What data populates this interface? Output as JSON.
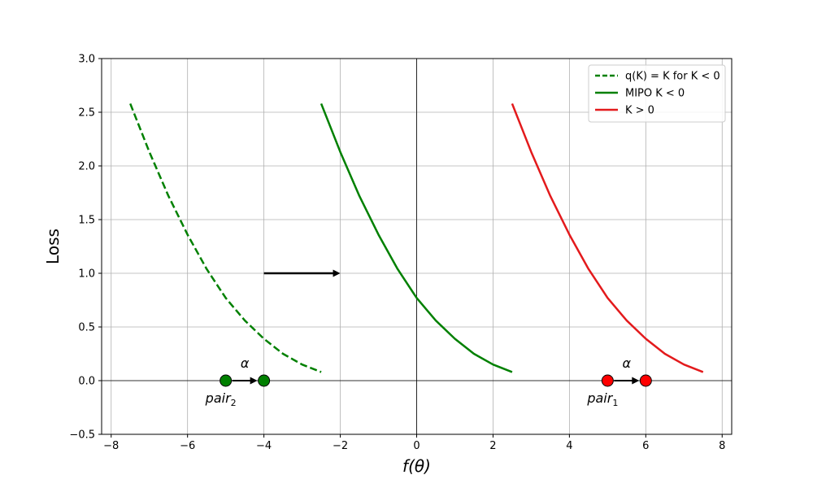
{
  "chart_data": {
    "type": "line",
    "xlabel": "f(θ)",
    "ylabel": "Loss",
    "xlim": [
      -8.25,
      8.25
    ],
    "ylim": [
      -0.5,
      3.0
    ],
    "x_ticks": [
      -8,
      -6,
      -4,
      -2,
      0,
      2,
      4,
      6,
      8
    ],
    "y_ticks": [
      -0.5,
      0.0,
      0.5,
      1.0,
      1.5,
      2.0,
      2.5,
      3.0
    ],
    "x_tick_labels": [
      "−8",
      "−6",
      "−4",
      "−2",
      "0",
      "2",
      "4",
      "6",
      "8"
    ],
    "y_tick_labels": [
      "−0.5",
      "0.0",
      "0.5",
      "1.0",
      "1.5",
      "2.0",
      "2.5",
      "3.0"
    ],
    "grid": true,
    "legend_position": "top-right",
    "series": [
      {
        "name": "q(K) = K for K < 0",
        "color": "#008000",
        "style": "dashed",
        "x": [
          -7.5,
          -7.0,
          -6.5,
          -6.0,
          -5.5,
          -5.0,
          -4.5,
          -4.0,
          -3.5,
          -3.0,
          -2.5
        ],
        "y": [
          2.58,
          2.13,
          1.72,
          1.36,
          1.04,
          0.77,
          0.56,
          0.39,
          0.25,
          0.15,
          0.08
        ]
      },
      {
        "name": "MIPO K < 0",
        "color": "#008000",
        "style": "solid",
        "x": [
          -2.5,
          -2.0,
          -1.5,
          -1.0,
          -0.5,
          0.0,
          0.5,
          1.0,
          1.5,
          2.0,
          2.5
        ],
        "y": [
          2.58,
          2.13,
          1.72,
          1.36,
          1.04,
          0.77,
          0.56,
          0.39,
          0.25,
          0.15,
          0.08
        ]
      },
      {
        "name": "K > 0",
        "color": "#e31a1c",
        "style": "solid",
        "x": [
          2.5,
          3.0,
          3.5,
          4.0,
          4.5,
          5.0,
          5.5,
          6.0,
          6.5,
          7.0,
          7.5
        ],
        "y": [
          2.58,
          2.13,
          1.72,
          1.36,
          1.04,
          0.77,
          0.56,
          0.39,
          0.25,
          0.15,
          0.08
        ]
      }
    ],
    "shift_arrow": {
      "from": [
        -4,
        1.0
      ],
      "to": [
        -2,
        1.0
      ]
    },
    "points": [
      {
        "x": -5,
        "y": 0,
        "color": "#008000"
      },
      {
        "x": -4,
        "y": 0,
        "color": "#008000"
      },
      {
        "x": 5,
        "y": 0,
        "color": "#ff0000"
      },
      {
        "x": 6,
        "y": 0,
        "color": "#ff0000"
      }
    ],
    "point_arrows": [
      {
        "from": [
          -5,
          0
        ],
        "to": [
          -4,
          0
        ]
      },
      {
        "from": [
          5,
          0
        ],
        "to": [
          6,
          0
        ]
      }
    ],
    "annotations": [
      {
        "text": "α",
        "x": -4.5,
        "y": 0.12
      },
      {
        "text": "α",
        "x": 5.5,
        "y": 0.12
      }
    ],
    "pair_labels": [
      {
        "base": "pair",
        "sub": "2",
        "x": -5,
        "y": -0.16
      },
      {
        "base": "pair",
        "sub": "1",
        "x": 5,
        "y": -0.16
      }
    ]
  }
}
